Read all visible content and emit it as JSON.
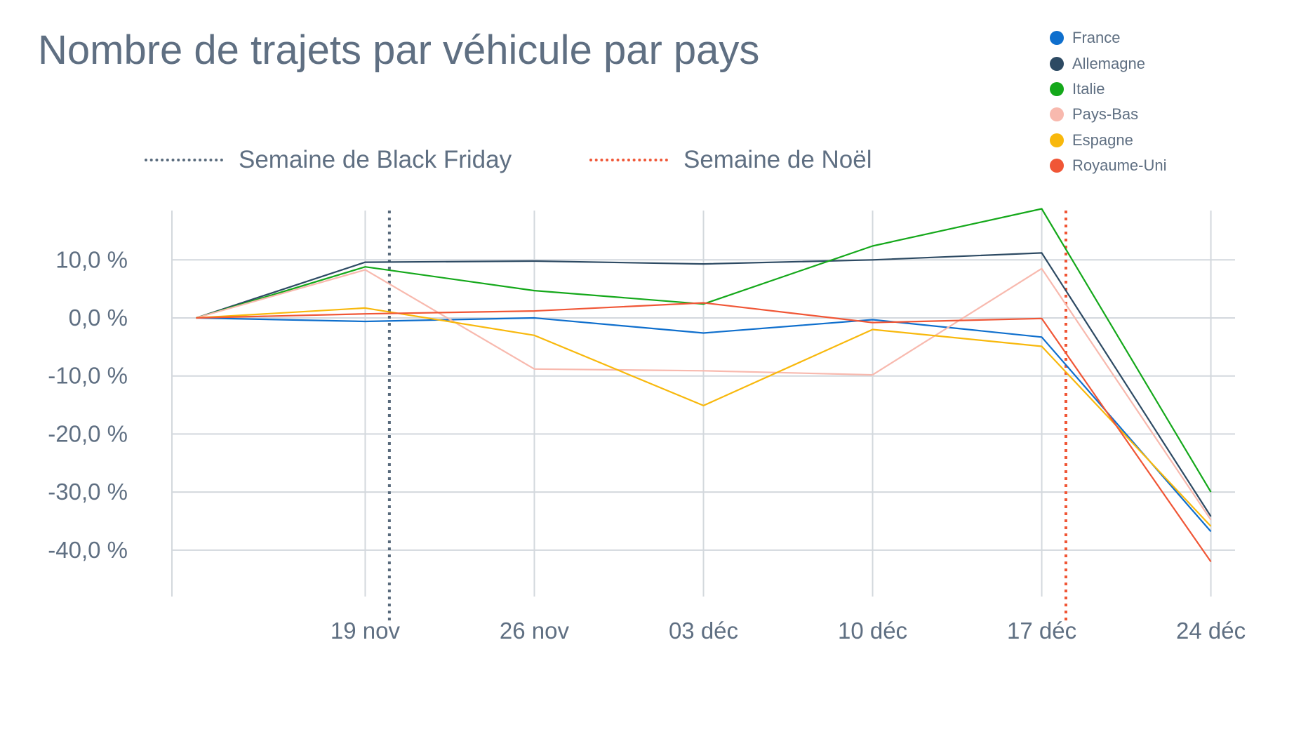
{
  "chart_data": {
    "type": "line",
    "title": "Nombre de trajets par véhicule par pays",
    "xlabel": "",
    "ylabel": "",
    "x": [
      "2021-11-12",
      "2021-11-19",
      "2021-11-26",
      "2021-12-03",
      "2021-12-10",
      "2021-12-17",
      "2021-12-24"
    ],
    "x_ticks": [
      "2021-11-19",
      "2021-11-26",
      "2021-12-03",
      "2021-12-10",
      "2021-12-17",
      "2021-12-24"
    ],
    "x_tick_labels": [
      "19 nov",
      "26 nov",
      "03 déc",
      "10 déc",
      "17 déc",
      "24 déc"
    ],
    "xlim": [
      "2021-11-11",
      "2021-12-25"
    ],
    "ylim": [
      -48,
      18.5
    ],
    "y_ticks": [
      10,
      0,
      -10,
      -20,
      -30,
      -40
    ],
    "y_tick_labels": [
      "10,0 %",
      "0,0 %",
      "-10,0 %",
      "-20,0 %",
      "-30,0 %",
      "-40,0 %"
    ],
    "grid": true,
    "legend_position": "top-right",
    "series": [
      {
        "name": "France",
        "color": "#0f6fcd",
        "values": [
          0,
          -0.6,
          0,
          -2.6,
          -0.3,
          -3.3,
          -36.8
        ]
      },
      {
        "name": "Allemagne",
        "color": "#2d4a63",
        "values": [
          0,
          9.6,
          9.8,
          9.3,
          10.0,
          11.2,
          -34.2
        ]
      },
      {
        "name": "Italie",
        "color": "#14a81a",
        "values": [
          0,
          8.8,
          4.7,
          2.4,
          12.4,
          18.8,
          -30.0
        ]
      },
      {
        "name": "Pays-Bas",
        "color": "#f8b9ae",
        "values": [
          0,
          8.3,
          -8.8,
          -9.1,
          -9.8,
          8.5,
          -34.8
        ]
      },
      {
        "name": "Espagne",
        "color": "#f8b80c",
        "values": [
          0,
          1.7,
          -3.0,
          -15.1,
          -2.0,
          -4.9,
          -35.9
        ]
      },
      {
        "name": "Royaume-Uni",
        "color": "#f05636",
        "values": [
          0,
          0.7,
          1.2,
          2.6,
          -0.8,
          -0.1,
          -42.0
        ]
      }
    ],
    "reference_lines": [
      {
        "label": "Semaine de Black Friday",
        "x": "2021-11-20",
        "color": "#586a7c"
      },
      {
        "label": "Semaine de Noël",
        "x": "2021-12-18",
        "color": "#f05636"
      }
    ]
  }
}
